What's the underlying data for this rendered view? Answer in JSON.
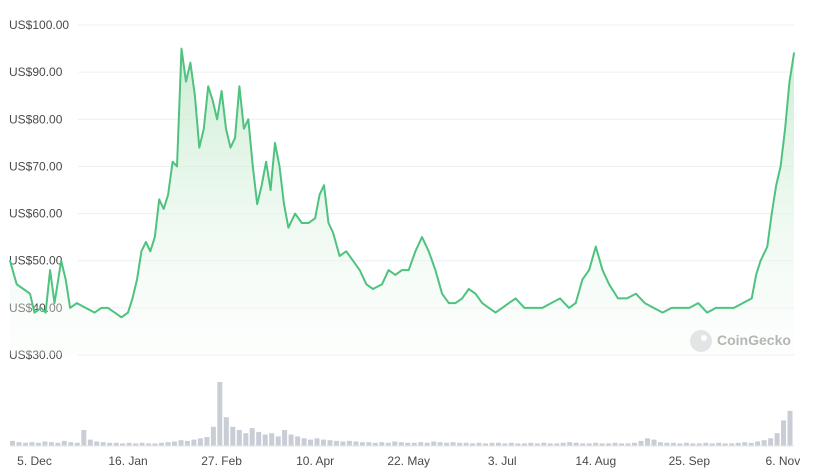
{
  "watermark": "CoinGecko",
  "chart_data": {
    "type": "area",
    "ylim": [
      30,
      100
    ],
    "grid": true,
    "y_ticks": [
      {
        "value": 30,
        "label": "US$30.00"
      },
      {
        "value": 40,
        "label": "US$40.00"
      },
      {
        "value": 50,
        "label": "US$50.00"
      },
      {
        "value": 60,
        "label": "US$60.00"
      },
      {
        "value": 70,
        "label": "US$70.00"
      },
      {
        "value": 80,
        "label": "US$80.00"
      },
      {
        "value": 90,
        "label": "US$90.00"
      },
      {
        "value": 100,
        "label": "US$100.00"
      }
    ],
    "x_range": [
      "Nov 24",
      "Nov 11"
    ],
    "x_ticks": [
      {
        "date": "Dec 5",
        "label": "5. Dec"
      },
      {
        "date": "Jan 16",
        "label": "16. Jan"
      },
      {
        "date": "Feb 27",
        "label": "27. Feb"
      },
      {
        "date": "Apr 10",
        "label": "10. Apr"
      },
      {
        "date": "May 22",
        "label": "22. May"
      },
      {
        "date": "Jul 3",
        "label": "3. Jul"
      },
      {
        "date": "Aug 14",
        "label": "14. Aug"
      },
      {
        "date": "Sep 25",
        "label": "25. Sep"
      },
      {
        "date": "Nov 6",
        "label": "6. Nov"
      }
    ],
    "series": [
      {
        "kind": "price",
        "color": "#4fc280",
        "points": [
          [
            "Nov 24",
            50
          ],
          [
            "Nov 27",
            45
          ],
          [
            "Nov 30",
            44
          ],
          [
            "Dec 3",
            43
          ],
          [
            "Dec 5",
            39
          ],
          [
            "Dec 8",
            40
          ],
          [
            "Dec 10",
            39
          ],
          [
            "Dec 12",
            48
          ],
          [
            "Dec 14",
            41
          ],
          [
            "Dec 17",
            50
          ],
          [
            "Dec 19",
            46
          ],
          [
            "Dec 21",
            40
          ],
          [
            "Dec 24",
            41
          ],
          [
            "Dec 28",
            40
          ],
          [
            "Jan 1",
            39
          ],
          [
            "Jan 4",
            40
          ],
          [
            "Jan 7",
            40
          ],
          [
            "Jan 10",
            39
          ],
          [
            "Jan 13",
            38
          ],
          [
            "Jan 16",
            39
          ],
          [
            "Jan 18",
            42
          ],
          [
            "Jan 20",
            46
          ],
          [
            "Jan 22",
            52
          ],
          [
            "Jan 24",
            54
          ],
          [
            "Jan 26",
            52
          ],
          [
            "Jan 28",
            55
          ],
          [
            "Jan 30",
            63
          ],
          [
            "Feb 1",
            61
          ],
          [
            "Feb 3",
            64
          ],
          [
            "Feb 5",
            71
          ],
          [
            "Feb 7",
            70
          ],
          [
            "Feb 9",
            95
          ],
          [
            "Feb 11",
            88
          ],
          [
            "Feb 13",
            92
          ],
          [
            "Feb 15",
            85
          ],
          [
            "Feb 17",
            74
          ],
          [
            "Feb 19",
            78
          ],
          [
            "Feb 21",
            87
          ],
          [
            "Feb 23",
            84
          ],
          [
            "Feb 25",
            80
          ],
          [
            "Feb 27",
            86
          ],
          [
            "Mar 1",
            78
          ],
          [
            "Mar 3",
            74
          ],
          [
            "Mar 5",
            76
          ],
          [
            "Mar 7",
            87
          ],
          [
            "Mar 9",
            78
          ],
          [
            "Mar 11",
            80
          ],
          [
            "Mar 13",
            70
          ],
          [
            "Mar 15",
            62
          ],
          [
            "Mar 17",
            66
          ],
          [
            "Mar 19",
            71
          ],
          [
            "Mar 21",
            65
          ],
          [
            "Mar 23",
            75
          ],
          [
            "Mar 25",
            70
          ],
          [
            "Mar 27",
            62
          ],
          [
            "Mar 29",
            57
          ],
          [
            "Apr 1",
            60
          ],
          [
            "Apr 4",
            58
          ],
          [
            "Apr 7",
            58
          ],
          [
            "Apr 10",
            59
          ],
          [
            "Apr 12",
            64
          ],
          [
            "Apr 14",
            66
          ],
          [
            "Apr 16",
            58
          ],
          [
            "Apr 18",
            56
          ],
          [
            "Apr 21",
            51
          ],
          [
            "Apr 24",
            52
          ],
          [
            "Apr 27",
            50
          ],
          [
            "Apr 30",
            48
          ],
          [
            "May 3",
            45
          ],
          [
            "May 6",
            44
          ],
          [
            "May 10",
            45
          ],
          [
            "May 13",
            48
          ],
          [
            "May 16",
            47
          ],
          [
            "May 19",
            48
          ],
          [
            "May 22",
            48
          ],
          [
            "May 25",
            52
          ],
          [
            "May 28",
            55
          ],
          [
            "May 31",
            52
          ],
          [
            "Jun 3",
            48
          ],
          [
            "Jun 6",
            43
          ],
          [
            "Jun 9",
            41
          ],
          [
            "Jun 12",
            41
          ],
          [
            "Jun 15",
            42
          ],
          [
            "Jun 18",
            44
          ],
          [
            "Jun 21",
            43
          ],
          [
            "Jun 24",
            41
          ],
          [
            "Jun 27",
            40
          ],
          [
            "Jun 30",
            39
          ],
          [
            "Jul 3",
            40
          ],
          [
            "Jul 6",
            41
          ],
          [
            "Jul 9",
            42
          ],
          [
            "Jul 13",
            40
          ],
          [
            "Jul 17",
            40
          ],
          [
            "Jul 21",
            40
          ],
          [
            "Jul 25",
            41
          ],
          [
            "Jul 29",
            42
          ],
          [
            "Aug 2",
            40
          ],
          [
            "Aug 5",
            41
          ],
          [
            "Aug 8",
            46
          ],
          [
            "Aug 11",
            48
          ],
          [
            "Aug 14",
            53
          ],
          [
            "Aug 17",
            48
          ],
          [
            "Aug 20",
            45
          ],
          [
            "Aug 24",
            42
          ],
          [
            "Aug 28",
            42
          ],
          [
            "Sep 1",
            43
          ],
          [
            "Sep 5",
            41
          ],
          [
            "Sep 9",
            40
          ],
          [
            "Sep 13",
            39
          ],
          [
            "Sep 17",
            40
          ],
          [
            "Sep 21",
            40
          ],
          [
            "Sep 25",
            40
          ],
          [
            "Sep 29",
            41
          ],
          [
            "Oct 3",
            39
          ],
          [
            "Oct 7",
            40
          ],
          [
            "Oct 11",
            40
          ],
          [
            "Oct 15",
            40
          ],
          [
            "Oct 19",
            41
          ],
          [
            "Oct 23",
            42
          ],
          [
            "Oct 25",
            47
          ],
          [
            "Oct 27",
            50
          ],
          [
            "Oct 30",
            53
          ],
          [
            "Nov 1",
            60
          ],
          [
            "Nov 3",
            66
          ],
          [
            "Nov 5",
            70
          ],
          [
            "Nov 7",
            78
          ],
          [
            "Nov 9",
            88
          ],
          [
            "Nov 11",
            94
          ]
        ]
      },
      {
        "kind": "volume",
        "color": "#c9ced6",
        "relative_heights": [
          0.08,
          0.06,
          0.05,
          0.06,
          0.05,
          0.07,
          0.06,
          0.05,
          0.08,
          0.06,
          0.05,
          0.25,
          0.1,
          0.07,
          0.06,
          0.05,
          0.05,
          0.04,
          0.05,
          0.04,
          0.05,
          0.04,
          0.04,
          0.05,
          0.06,
          0.07,
          0.09,
          0.08,
          0.1,
          0.12,
          0.14,
          0.3,
          1.0,
          0.45,
          0.3,
          0.25,
          0.2,
          0.28,
          0.22,
          0.18,
          0.2,
          0.15,
          0.25,
          0.18,
          0.15,
          0.12,
          0.1,
          0.12,
          0.1,
          0.09,
          0.08,
          0.07,
          0.08,
          0.07,
          0.06,
          0.06,
          0.05,
          0.06,
          0.05,
          0.07,
          0.06,
          0.05,
          0.05,
          0.06,
          0.05,
          0.07,
          0.06,
          0.05,
          0.06,
          0.05,
          0.05,
          0.04,
          0.05,
          0.04,
          0.05,
          0.05,
          0.04,
          0.05,
          0.04,
          0.04,
          0.05,
          0.04,
          0.05,
          0.04,
          0.04,
          0.05,
          0.06,
          0.05,
          0.04,
          0.04,
          0.05,
          0.04,
          0.04,
          0.05,
          0.04,
          0.04,
          0.05,
          0.08,
          0.12,
          0.1,
          0.06,
          0.05,
          0.05,
          0.04,
          0.05,
          0.04,
          0.04,
          0.05,
          0.04,
          0.05,
          0.04,
          0.04,
          0.05,
          0.06,
          0.05,
          0.07,
          0.09,
          0.12,
          0.2,
          0.4,
          0.55
        ]
      }
    ]
  }
}
